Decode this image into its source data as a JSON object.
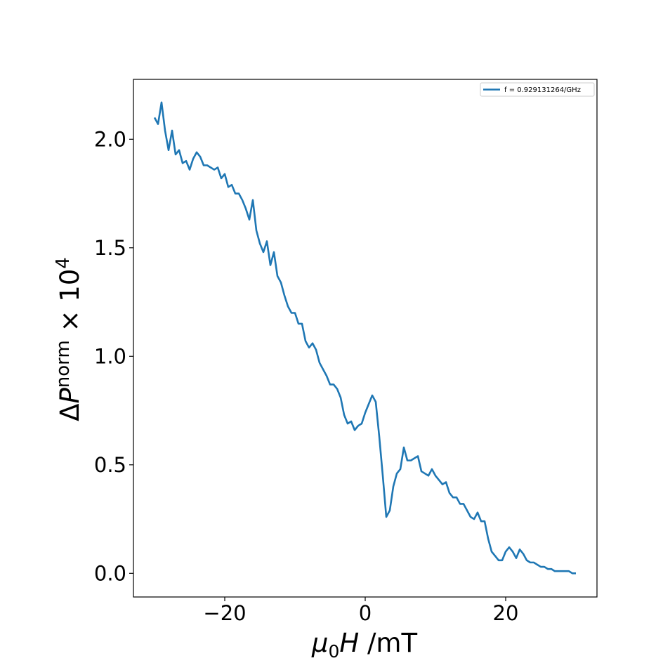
{
  "chart_data": {
    "type": "line",
    "xlabel": [
      "μ",
      "0",
      "H",
      " /mT"
    ],
    "ylabel": [
      "Δ",
      "P",
      "norm",
      " × 10",
      "4"
    ],
    "legend": "upper right",
    "x": [
      -30,
      -29.5,
      -29,
      -28.5,
      -28,
      -27.5,
      -27,
      -26.5,
      -26,
      -25.5,
      -25,
      -24.5,
      -24,
      -23.5,
      -23,
      -22.5,
      -22,
      -21.5,
      -21,
      -20.5,
      -20,
      -19.5,
      -19,
      -18.5,
      -18,
      -17.5,
      -17,
      -16.5,
      -16,
      -15.5,
      -15,
      -14.5,
      -14,
      -13.5,
      -13,
      -12.5,
      -12,
      -11.5,
      -11,
      -10.5,
      -10,
      -9.5,
      -9,
      -8.5,
      -8,
      -7.5,
      -7,
      -6.5,
      -6,
      -5.5,
      -5,
      -4.5,
      -4,
      -3.5,
      -3,
      -2.5,
      -2,
      -1.5,
      -1,
      -0.5,
      0,
      0.5,
      1,
      1.5,
      2,
      2.5,
      3,
      3.5,
      4,
      4.5,
      5,
      5.5,
      6,
      6.5,
      7,
      7.5,
      8,
      8.5,
      9,
      9.5,
      10,
      10.5,
      11,
      11.5,
      12,
      12.5,
      13,
      13.5,
      14,
      14.5,
      15,
      15.5,
      16,
      16.5,
      17,
      17.5,
      18,
      18.5,
      19,
      19.5,
      20,
      20.5,
      21,
      21.5,
      22,
      22.5,
      23,
      23.5,
      24,
      24.5,
      25,
      25.5,
      26,
      26.5,
      27,
      27.5,
      28,
      28.5,
      29,
      29.5,
      30
    ],
    "series": [
      {
        "name": "f = 0.929131264/GHz",
        "color": "#1f77b4",
        "values": [
          2.1,
          2.07,
          2.17,
          2.04,
          1.95,
          2.04,
          1.93,
          1.95,
          1.89,
          1.9,
          1.86,
          1.91,
          1.94,
          1.92,
          1.88,
          1.88,
          1.87,
          1.86,
          1.87,
          1.82,
          1.84,
          1.78,
          1.79,
          1.75,
          1.75,
          1.72,
          1.68,
          1.63,
          1.72,
          1.58,
          1.52,
          1.48,
          1.53,
          1.42,
          1.48,
          1.37,
          1.34,
          1.28,
          1.23,
          1.2,
          1.2,
          1.15,
          1.15,
          1.07,
          1.04,
          1.06,
          1.03,
          0.97,
          0.94,
          0.91,
          0.87,
          0.87,
          0.85,
          0.81,
          0.73,
          0.69,
          0.7,
          0.66,
          0.68,
          0.69,
          0.74,
          0.78,
          0.82,
          0.79,
          0.63,
          0.45,
          0.26,
          0.29,
          0.4,
          0.46,
          0.48,
          0.58,
          0.52,
          0.52,
          0.53,
          0.54,
          0.47,
          0.46,
          0.45,
          0.48,
          0.45,
          0.43,
          0.41,
          0.42,
          0.37,
          0.35,
          0.35,
          0.32,
          0.32,
          0.29,
          0.26,
          0.25,
          0.28,
          0.24,
          0.24,
          0.16,
          0.1,
          0.08,
          0.06,
          0.06,
          0.1,
          0.12,
          0.1,
          0.07,
          0.11,
          0.09,
          0.06,
          0.05,
          0.05,
          0.04,
          0.03,
          0.03,
          0.02,
          0.02,
          0.01,
          0.01,
          0.01,
          0.01,
          0.01,
          0.0,
          0.0
        ]
      }
    ],
    "xlim": [
      -33,
      33
    ],
    "ylim": [
      -0.109,
      2.276
    ],
    "xticks": [
      {
        "value": -20,
        "label": "−20"
      },
      0,
      20
    ],
    "yticks": [
      {
        "value": 0,
        "label": "0.0"
      },
      0.5,
      {
        "value": 1,
        "label": "1.0"
      },
      1.5,
      {
        "value": 2,
        "label": "2.0"
      }
    ]
  }
}
